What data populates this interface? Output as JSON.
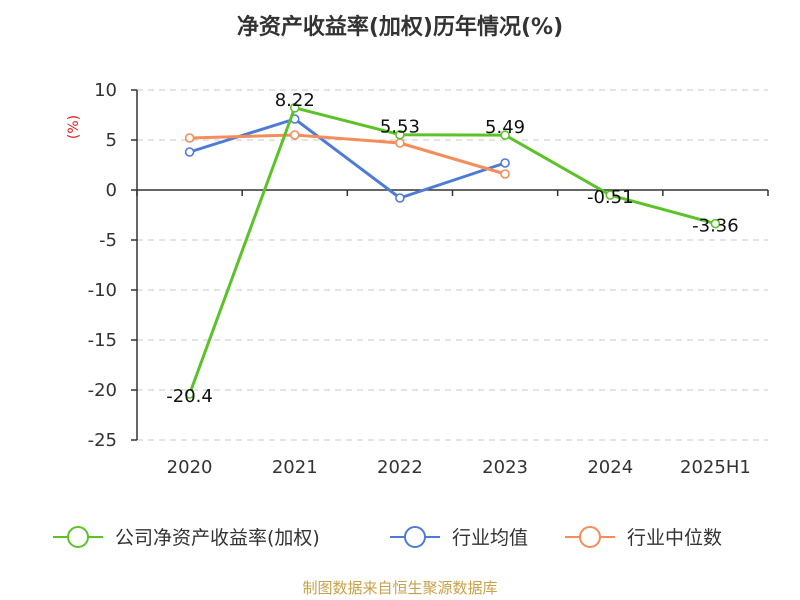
{
  "chart_data": {
    "type": "line",
    "title": "净资产收益率(加权)历年情况(%)",
    "ylabel": "(%)",
    "categories": [
      "2020",
      "2021",
      "2022",
      "2023",
      "2024",
      "2025H1"
    ],
    "yticks": [
      10,
      5,
      0,
      -5,
      -10,
      -15,
      -20,
      -25
    ],
    "ylim": [
      -25,
      10
    ],
    "grid": true,
    "legend_position": "bottom",
    "series": [
      {
        "name": "公司净资产收益率(加权)",
        "color": "#5cc22a",
        "values": [
          -20.4,
          8.22,
          5.53,
          5.49,
          -0.51,
          -3.36
        ],
        "labels": [
          "-20.4",
          "8.22",
          "5.53",
          "5.49",
          "-0.51",
          "-3.36"
        ]
      },
      {
        "name": "行业均值",
        "color": "#4e7bd6",
        "values": [
          3.8,
          7.1,
          -0.8,
          2.7,
          null,
          null
        ]
      },
      {
        "name": "行业中位数",
        "color": "#f58d5a",
        "values": [
          5.2,
          5.5,
          4.7,
          1.6,
          null,
          null
        ]
      }
    ]
  },
  "source": "制图数据来自恒生聚源数据库"
}
